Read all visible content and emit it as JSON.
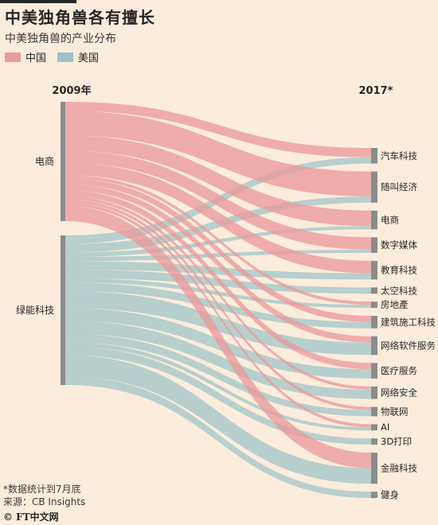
{
  "header": {
    "title": "中美独角兽各有擅长",
    "subtitle": "中美独角兽的产业分布"
  },
  "legend": [
    {
      "label": "中国",
      "color": "#e99a9c"
    },
    {
      "label": "美国",
      "color": "#9cc3c7"
    }
  ],
  "colors": {
    "background": "#fcecdc",
    "china": "#e99a9c",
    "us": "#9cc3c7",
    "node_bar": "#8c8c8c"
  },
  "chart_data": {
    "type": "sankey",
    "left_axis_label": "2009年",
    "right_axis_label": "2017*",
    "sources": [
      {
        "id": "ecommerce",
        "label": "电商",
        "series": "中国"
      },
      {
        "id": "greentech",
        "label": "绿能科技",
        "series": "美国"
      }
    ],
    "targets": [
      {
        "label": "汽车科技",
        "china": 3,
        "us": 2
      },
      {
        "label": "随叫经济",
        "china": 8,
        "us": 2
      },
      {
        "label": "电商",
        "china": 5,
        "us": 1
      },
      {
        "label": "数字媒体",
        "china": 4,
        "us": 1
      },
      {
        "label": "教育科技",
        "china": 4,
        "us": 2
      },
      {
        "label": "太空科技",
        "china": 0,
        "us": 2
      },
      {
        "label": "房地產",
        "china": 1,
        "us": 1
      },
      {
        "label": "建筑施工科技",
        "china": 2,
        "us": 2
      },
      {
        "label": "网络软件服务",
        "china": 2,
        "us": 4
      },
      {
        "label": "医疗服务",
        "china": 2,
        "us": 3
      },
      {
        "label": "网络安全",
        "china": 1,
        "us": 3
      },
      {
        "label": "物联网",
        "china": 1,
        "us": 2
      },
      {
        "label": "AI",
        "china": 1,
        "us": 1
      },
      {
        "label": "3D打印",
        "china": 0,
        "us": 2
      },
      {
        "label": "金融科技",
        "china": 5,
        "us": 5
      },
      {
        "label": "健身",
        "china": 0,
        "us": 2
      }
    ]
  },
  "footer": {
    "note": "*数据统计到7月底",
    "source": "来源：CB Insights",
    "logo": "© FT中文网"
  }
}
